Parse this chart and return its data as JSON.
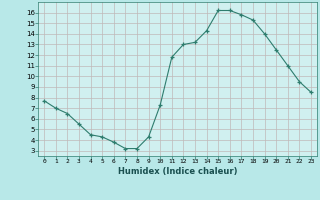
{
  "x": [
    0,
    1,
    2,
    3,
    4,
    5,
    6,
    7,
    8,
    9,
    10,
    11,
    12,
    13,
    14,
    15,
    16,
    17,
    18,
    19,
    20,
    21,
    22,
    23
  ],
  "y": [
    7.7,
    7.0,
    6.5,
    5.5,
    4.5,
    4.3,
    3.8,
    3.2,
    3.2,
    4.3,
    7.3,
    11.8,
    13.0,
    13.2,
    14.3,
    16.2,
    16.2,
    15.8,
    15.3,
    14.0,
    12.5,
    11.0,
    9.5,
    8.5
  ],
  "xlabel": "Humidex (Indice chaleur)",
  "xlim": [
    -0.5,
    23.5
  ],
  "ylim": [
    2.5,
    17.0
  ],
  "yticks": [
    3,
    4,
    5,
    6,
    7,
    8,
    9,
    10,
    11,
    12,
    13,
    14,
    15,
    16
  ],
  "xticks": [
    0,
    1,
    2,
    3,
    4,
    5,
    6,
    7,
    8,
    9,
    10,
    11,
    12,
    13,
    14,
    15,
    16,
    17,
    18,
    19,
    20,
    21,
    22,
    23
  ],
  "line_color": "#2e7d6e",
  "marker_color": "#2e7d6e",
  "bg_color": "#b8e8e8",
  "grid_color": "#c0b8b8",
  "face_color": "#d0f0f0"
}
